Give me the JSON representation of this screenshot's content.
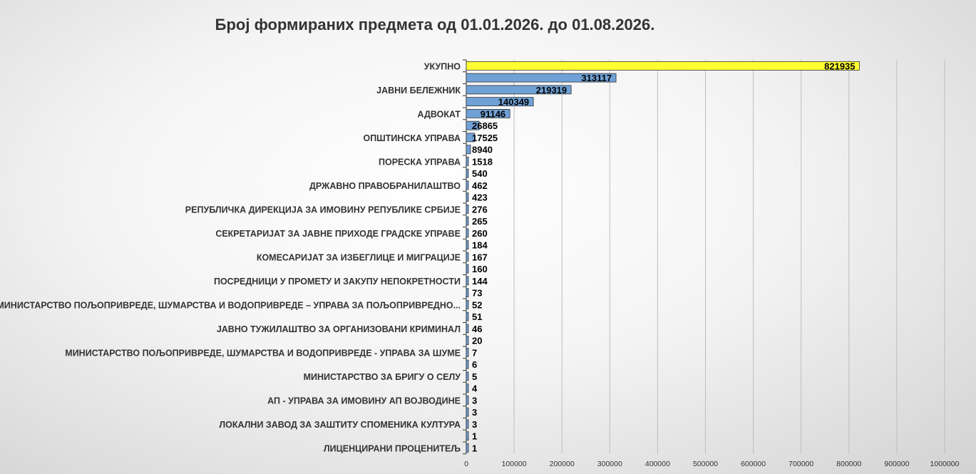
{
  "chart_data": {
    "type": "bar",
    "orientation": "horizontal",
    "title": "Број формираних предмета од 01.01.2026. до 01.08.2026.",
    "xlim": [
      0,
      1000000
    ],
    "x_ticks": [
      "0",
      "100000",
      "200000",
      "300000",
      "400000",
      "500000",
      "600000",
      "700000",
      "800000",
      "900000",
      "1000000"
    ],
    "grid": "vertical",
    "legend": "none",
    "highlight_color": "#ffff33",
    "bar_color": "#6fa1d6",
    "bars": [
      {
        "label": "УКУПНО",
        "value": 821935,
        "highlight": true
      },
      {
        "label": "",
        "value": 313117
      },
      {
        "label": "ЈАВНИ БЕЛЕЖНИК",
        "value": 219319
      },
      {
        "label": "",
        "value": 140349
      },
      {
        "label": "АДВОКАТ",
        "value": 91146
      },
      {
        "label": "",
        "value": 26865
      },
      {
        "label": "ОПШТИНСКА УПРАВА",
        "value": 17525
      },
      {
        "label": "",
        "value": 8940
      },
      {
        "label": "ПОРЕСКА УПРАВА",
        "value": 1518
      },
      {
        "label": "",
        "value": 540
      },
      {
        "label": "ДРЖАВНО ПРАВОБРАНИЛАШТВО",
        "value": 462
      },
      {
        "label": "",
        "value": 423
      },
      {
        "label": "РЕПУБЛИЧКА ДИРЕКЦИЈА ЗА ИМОВИНУ РЕПУБЛИКЕ СРБИЈЕ",
        "value": 276
      },
      {
        "label": "",
        "value": 265
      },
      {
        "label": "СЕКРЕТАРИЈАТ ЗА ЈАВНЕ ПРИХОДЕ ГРАДСКЕ УПРАВЕ",
        "value": 260
      },
      {
        "label": "",
        "value": 184
      },
      {
        "label": "КОМЕСАРИЈАТ ЗА ИЗБЕГЛИЦЕ И МИГРАЦИЈЕ",
        "value": 167
      },
      {
        "label": "",
        "value": 160
      },
      {
        "label": "ПОСРЕДНИЦИ У ПРОМЕТУ И ЗАКУПУ НЕПОКРЕТНОСТИ",
        "value": 144
      },
      {
        "label": "",
        "value": 73
      },
      {
        "label": "МИНИСТАРСТВО ПОЉОПРИВРЕДЕ, ШУМАРСТВА И ВОДОПРИВРЕДЕ – УПРАВА ЗА ПОЉОПРИВРЕДНО...",
        "value": 52
      },
      {
        "label": "",
        "value": 51
      },
      {
        "label": "ЈАВНО ТУЖИЛАШТВО ЗА ОРГАНИЗОВАНИ КРИМИНАЛ",
        "value": 46
      },
      {
        "label": "",
        "value": 20
      },
      {
        "label": "МИНИСТАРСТВО ПОЉОПРИВРЕДЕ, ШУМАРСТВА И ВОДОПРИВРЕДЕ - УПРАВА ЗА ШУМЕ",
        "value": 7
      },
      {
        "label": "",
        "value": 6
      },
      {
        "label": "МИНИСТАРСТВО ЗА БРИГУ О СЕЛУ",
        "value": 5
      },
      {
        "label": "",
        "value": 4
      },
      {
        "label": "АП - УПРАВА ЗА ИМОВИНУ АП ВОЈВОДИНЕ",
        "value": 3
      },
      {
        "label": "",
        "value": 3
      },
      {
        "label": "ЛОКАЛНИ ЗАВОД ЗА ЗАШТИТУ СПОМЕНИКА КУЛТУРА",
        "value": 3
      },
      {
        "label": "",
        "value": 1
      },
      {
        "label": "ЛИЦЕНЦИРАНИ ПРОЦЕНИТЕЉ",
        "value": 1
      }
    ]
  }
}
